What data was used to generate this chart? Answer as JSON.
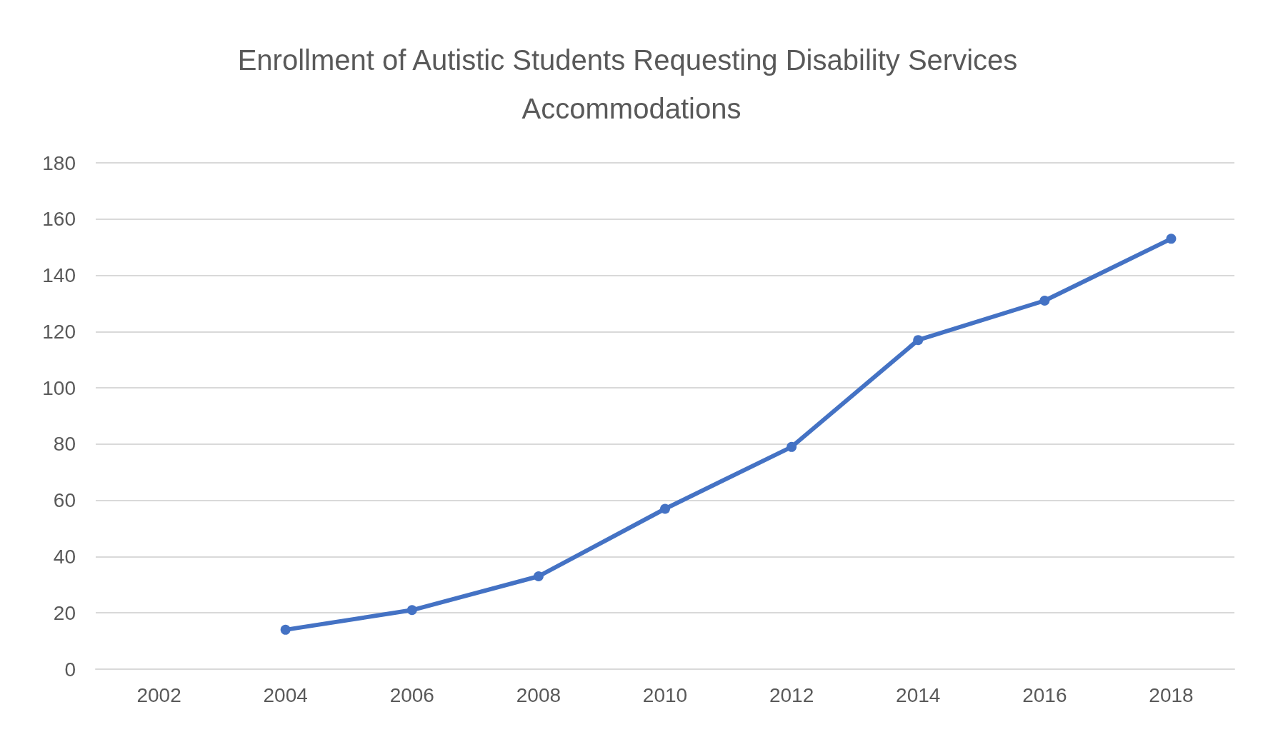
{
  "chart_data": {
    "type": "line",
    "title": "Enrollment of Autistic Students Requesting Disability Services Accommodations",
    "categories": [
      "2002",
      "2004",
      "2006",
      "2008",
      "2010",
      "2012",
      "2014",
      "2016",
      "2018"
    ],
    "values": [
      null,
      14,
      21,
      33,
      57,
      79,
      117,
      131,
      153
    ],
    "color": "#4472c4",
    "marker": "circle",
    "ylim": [
      0,
      180
    ],
    "yticks": [
      0,
      20,
      40,
      60,
      80,
      100,
      120,
      140,
      160,
      180
    ],
    "grid": "y"
  }
}
